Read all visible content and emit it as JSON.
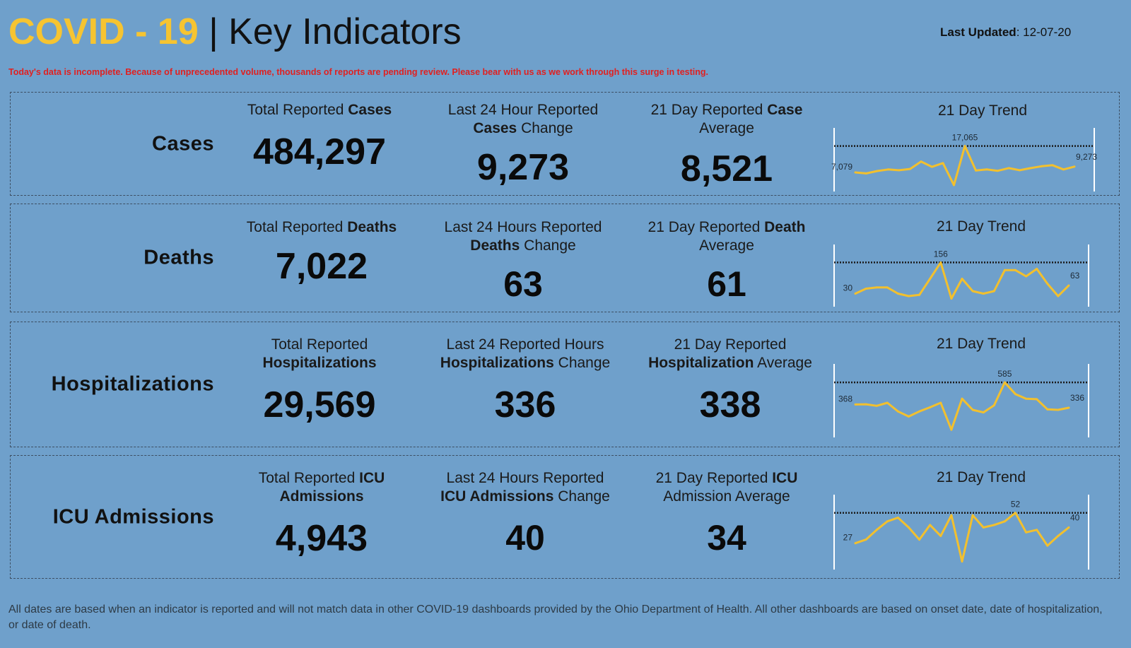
{
  "header": {
    "title_highlight": "COVID - 19",
    "title_separator": "|",
    "title_rest": "Key Indicators",
    "last_updated_label": "Last Updated",
    "last_updated_value": ": 12-07-20",
    "warning": "Today's data is incomplete. Because of unprecedented volume, thousands of reports are pending review. Please bear with us as we work through this surge in testing."
  },
  "colors": {
    "background": "#6fa0cb",
    "accent": "#f6c431",
    "warning": "#e02020",
    "trend_line": "#f2c02e"
  },
  "panels": [
    {
      "category": "Cases",
      "total": {
        "label_pre": "Total Reported ",
        "label_bold": "Cases",
        "label_post": "",
        "value": "484,297"
      },
      "change": {
        "label_pre": "Last 24 Hour Reported ",
        "label_bold": "Cases",
        "label_post": " Change",
        "value": "9,273"
      },
      "average": {
        "label_pre": "21 Day Reported ",
        "label_bold": "Case",
        "label_post": " Average",
        "value": "8,521"
      },
      "trend_title": "21 Day Trend"
    },
    {
      "category": "Deaths",
      "total": {
        "label_pre": "Total Reported ",
        "label_bold": "Deaths",
        "label_post": "",
        "value": "7,022"
      },
      "change": {
        "label_pre": "Last 24 Hours Reported ",
        "label_bold": "Deaths",
        "label_post": " Change",
        "value": "63"
      },
      "average": {
        "label_pre": "21 Day Reported ",
        "label_bold": "Death",
        "label_post": " Average",
        "value": "61"
      },
      "trend_title": "21 Day Trend"
    },
    {
      "category": "Hospitalizations",
      "total": {
        "label_pre": "Total Reported ",
        "label_bold": "Hospitalizations",
        "label_post": "",
        "value": "29,569"
      },
      "change": {
        "label_pre": "Last 24 Reported Hours ",
        "label_bold": "Hospitalizations",
        "label_post": " Change",
        "value": "336"
      },
      "average": {
        "label_pre": "21 Day Reported ",
        "label_bold": "Hospitalization",
        "label_post": " Average",
        "value": "338"
      },
      "trend_title": "21 Day Trend"
    },
    {
      "category": "ICU Admissions",
      "total": {
        "label_pre": "Total Reported ",
        "label_bold": "ICU Admissions",
        "label_post": "",
        "value": "4,943"
      },
      "change": {
        "label_pre": "Last 24 Hours Reported ",
        "label_bold": "ICU Admissions",
        "label_post": " Change",
        "value": "40"
      },
      "average": {
        "label_pre": "21 Day Reported ",
        "label_bold": "ICU",
        "label_post": " Admission Average",
        "value": "34"
      },
      "trend_title": "21 Day Trend"
    }
  ],
  "chart_data": [
    {
      "type": "line",
      "series": [
        {
          "values": [
            7079,
            6700,
            7600,
            8200,
            7900,
            8400,
            11200,
            9200,
            10600,
            2300,
            17065,
            7800,
            8200,
            7700,
            8700,
            7900,
            8700,
            9400,
            9800,
            8200,
            9273
          ]
        }
      ],
      "annotations": {
        "first": "7,079",
        "max": "17,065",
        "last": "9,273"
      },
      "reference_line": "max",
      "ylim": [
        2000,
        17500
      ]
    },
    {
      "type": "line",
      "series": [
        {
          "values": [
            30,
            50,
            55,
            55,
            30,
            20,
            25,
            90,
            156,
            10,
            90,
            40,
            30,
            40,
            125,
            125,
            100,
            130,
            70,
            20,
            63
          ]
        }
      ],
      "annotations": {
        "first": "30",
        "max": "156",
        "last": "63"
      },
      "reference_line": "max",
      "ylim": [
        0,
        160
      ]
    },
    {
      "type": "line",
      "series": [
        {
          "values": [
            368,
            370,
            355,
            385,
            300,
            250,
            300,
            340,
            385,
            120,
            425,
            315,
            290,
            360,
            585,
            470,
            425,
            420,
            320,
            315,
            336
          ]
        }
      ],
      "annotations": {
        "first": "368",
        "max": "585",
        "last": "336"
      },
      "reference_line": "max",
      "ylim": [
        100,
        600
      ]
    },
    {
      "type": "line",
      "series": [
        {
          "values": [
            27,
            30,
            38,
            45,
            48,
            40,
            30,
            42,
            33,
            50,
            12,
            50,
            40,
            42,
            45,
            52,
            36,
            38,
            25,
            33,
            40
          ]
        }
      ],
      "annotations": {
        "first": "27",
        "max": "52",
        "last": "40"
      },
      "reference_line": "max",
      "ylim": [
        10,
        53
      ]
    }
  ],
  "footnote": "All dates are based when an indicator is reported and will not match data in other COVID-19 dashboards provided by the Ohio Department of Health. All other dashboards are based on onset date, date of hospitalization, or date of death."
}
